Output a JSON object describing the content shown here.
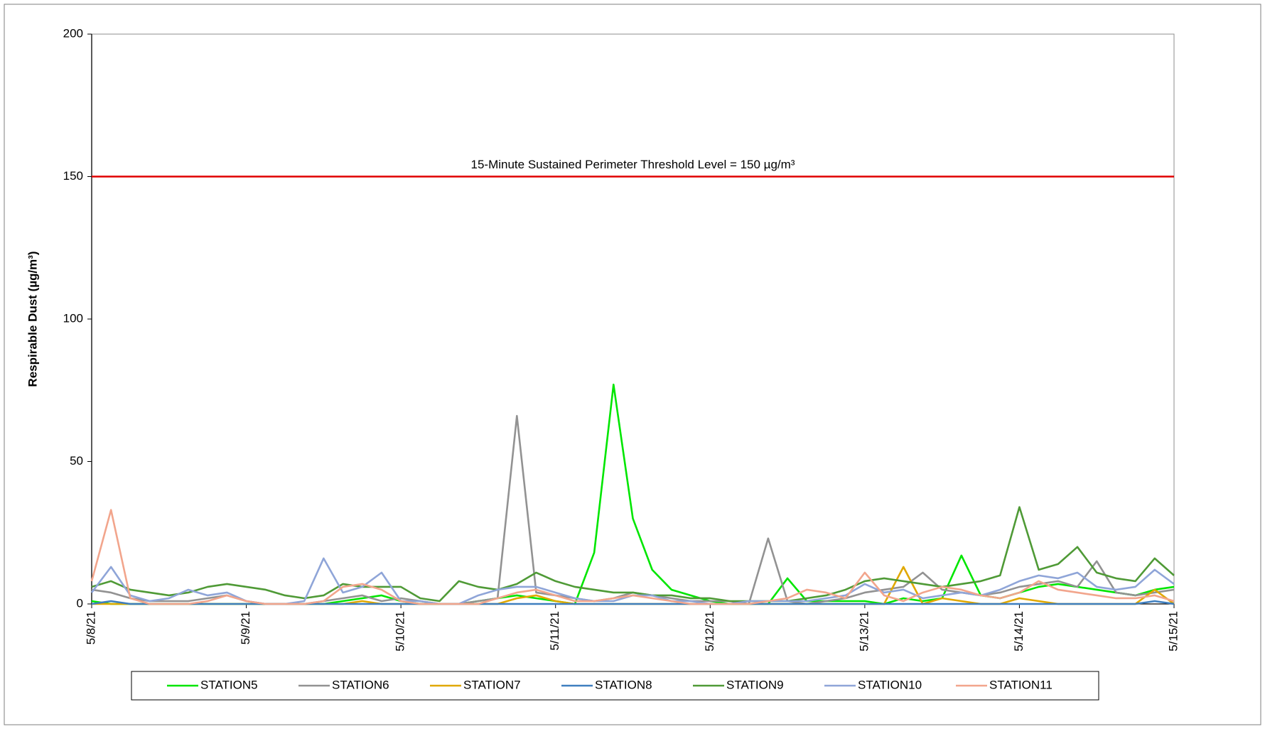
{
  "chart_data": {
    "type": "line",
    "y_label": "Respirable Dust (µg/m³)",
    "threshold": {
      "value": 150,
      "label": "15-Minute Sustained Perimeter Threshold Level = 150 µg/m³",
      "color": "#e00000"
    },
    "x": [
      0,
      0.125,
      0.25,
      0.375,
      0.5,
      0.625,
      0.75,
      0.875,
      1,
      1.125,
      1.25,
      1.375,
      1.5,
      1.625,
      1.75,
      1.875,
      2,
      2.125,
      2.25,
      2.375,
      2.5,
      2.625,
      2.75,
      2.875,
      3,
      3.125,
      3.25,
      3.375,
      3.5,
      3.625,
      3.75,
      3.875,
      4,
      4.125,
      4.25,
      4.375,
      4.5,
      4.625,
      4.75,
      4.875,
      5,
      5.125,
      5.25,
      5.375,
      5.5,
      5.625,
      5.75,
      5.875,
      6,
      6.125,
      6.25,
      6.375,
      6.5,
      6.625,
      6.75,
      6.875,
      7
    ],
    "xlim": [
      0,
      7
    ],
    "xticks": [
      {
        "value": 0,
        "label": "5/8/21"
      },
      {
        "value": 1,
        "label": "5/9/21"
      },
      {
        "value": 2,
        "label": "5/10/21"
      },
      {
        "value": 3,
        "label": "5/11/21"
      },
      {
        "value": 4,
        "label": "5/12/21"
      },
      {
        "value": 5,
        "label": "5/13/21"
      },
      {
        "value": 6,
        "label": "5/14/21"
      },
      {
        "value": 7,
        "label": "5/15/21"
      }
    ],
    "ylim": [
      0,
      200
    ],
    "yticks": [
      0,
      50,
      100,
      150,
      200
    ],
    "series": [
      {
        "name": "STATION5",
        "color": "#00e600",
        "values": [
          1,
          0,
          0,
          0,
          0,
          0,
          0,
          0,
          0,
          0,
          0,
          0,
          0,
          1,
          2,
          3,
          1,
          0,
          0,
          0,
          1,
          2,
          3,
          2,
          1,
          0,
          18,
          77,
          30,
          12,
          5,
          3,
          1,
          0,
          0,
          0,
          9,
          1,
          1,
          1,
          1,
          0,
          2,
          1,
          2,
          17,
          3,
          2,
          4,
          6,
          7,
          6,
          5,
          4,
          3,
          5,
          6
        ]
      },
      {
        "name": "STATION6",
        "color": "#929292",
        "values": [
          5,
          4,
          2,
          1,
          1,
          1,
          2,
          3,
          1,
          0,
          0,
          0,
          1,
          2,
          3,
          1,
          2,
          1,
          0,
          0,
          1,
          2,
          66,
          4,
          3,
          2,
          1,
          2,
          4,
          3,
          2,
          1,
          1,
          1,
          0,
          23,
          1,
          0,
          1,
          2,
          4,
          5,
          6,
          11,
          5,
          4,
          3,
          4,
          6,
          7,
          8,
          6,
          15,
          4,
          3,
          4,
          5
        ]
      },
      {
        "name": "STATION7",
        "color": "#e0a800",
        "values": [
          0,
          0,
          0,
          0,
          0,
          0,
          0,
          0,
          0,
          0,
          0,
          0,
          0,
          0,
          1,
          0,
          0,
          0,
          0,
          0,
          0,
          0,
          2,
          3,
          1,
          0,
          0,
          0,
          0,
          0,
          0,
          0,
          0,
          0,
          0,
          0,
          0,
          0,
          0,
          0,
          0,
          0,
          13,
          0,
          2,
          1,
          0,
          0,
          2,
          1,
          0,
          0,
          0,
          0,
          0,
          5,
          0
        ]
      },
      {
        "name": "STATION8",
        "color": "#3f7fbf",
        "values": [
          0,
          1,
          0,
          0,
          0,
          0,
          0,
          0,
          0,
          0,
          0,
          0,
          0,
          0,
          0,
          0,
          0,
          0,
          0,
          0,
          0,
          0,
          0,
          0,
          0,
          0,
          0,
          0,
          0,
          0,
          0,
          0,
          0,
          0,
          0,
          0,
          0,
          0,
          0,
          0,
          0,
          0,
          0,
          0,
          0,
          0,
          0,
          0,
          0,
          0,
          0,
          0,
          0,
          0,
          0,
          1,
          0
        ]
      },
      {
        "name": "STATION9",
        "color": "#4f9a36",
        "values": [
          6,
          8,
          5,
          4,
          3,
          4,
          6,
          7,
          6,
          5,
          3,
          2,
          3,
          7,
          6,
          6,
          6,
          2,
          1,
          8,
          6,
          5,
          7,
          11,
          8,
          6,
          5,
          4,
          4,
          3,
          3,
          2,
          2,
          1,
          1,
          1,
          1,
          2,
          3,
          5,
          8,
          9,
          8,
          7,
          6,
          7,
          8,
          10,
          34,
          12,
          14,
          20,
          11,
          9,
          8,
          16,
          10
        ]
      },
      {
        "name": "STATION10",
        "color": "#8fa5d8",
        "values": [
          4,
          13,
          3,
          1,
          2,
          5,
          3,
          4,
          1,
          0,
          0,
          1,
          16,
          4,
          6,
          11,
          1,
          1,
          0,
          0,
          3,
          5,
          6,
          6,
          4,
          2,
          1,
          1,
          3,
          3,
          1,
          1,
          0,
          0,
          1,
          1,
          1,
          1,
          2,
          3,
          7,
          4,
          5,
          2,
          3,
          4,
          3,
          5,
          8,
          10,
          9,
          11,
          6,
          5,
          6,
          12,
          7
        ]
      },
      {
        "name": "STATION11",
        "color": "#f2a58c",
        "values": [
          8,
          33,
          2,
          0,
          0,
          0,
          1,
          3,
          1,
          0,
          0,
          0,
          1,
          6,
          7,
          5,
          1,
          0,
          0,
          0,
          0,
          2,
          4,
          5,
          3,
          1,
          1,
          2,
          3,
          2,
          1,
          0,
          0,
          0,
          0,
          1,
          2,
          5,
          4,
          2,
          11,
          3,
          1,
          4,
          6,
          5,
          3,
          2,
          4,
          8,
          5,
          4,
          3,
          2,
          2,
          3,
          1
        ]
      }
    ]
  }
}
